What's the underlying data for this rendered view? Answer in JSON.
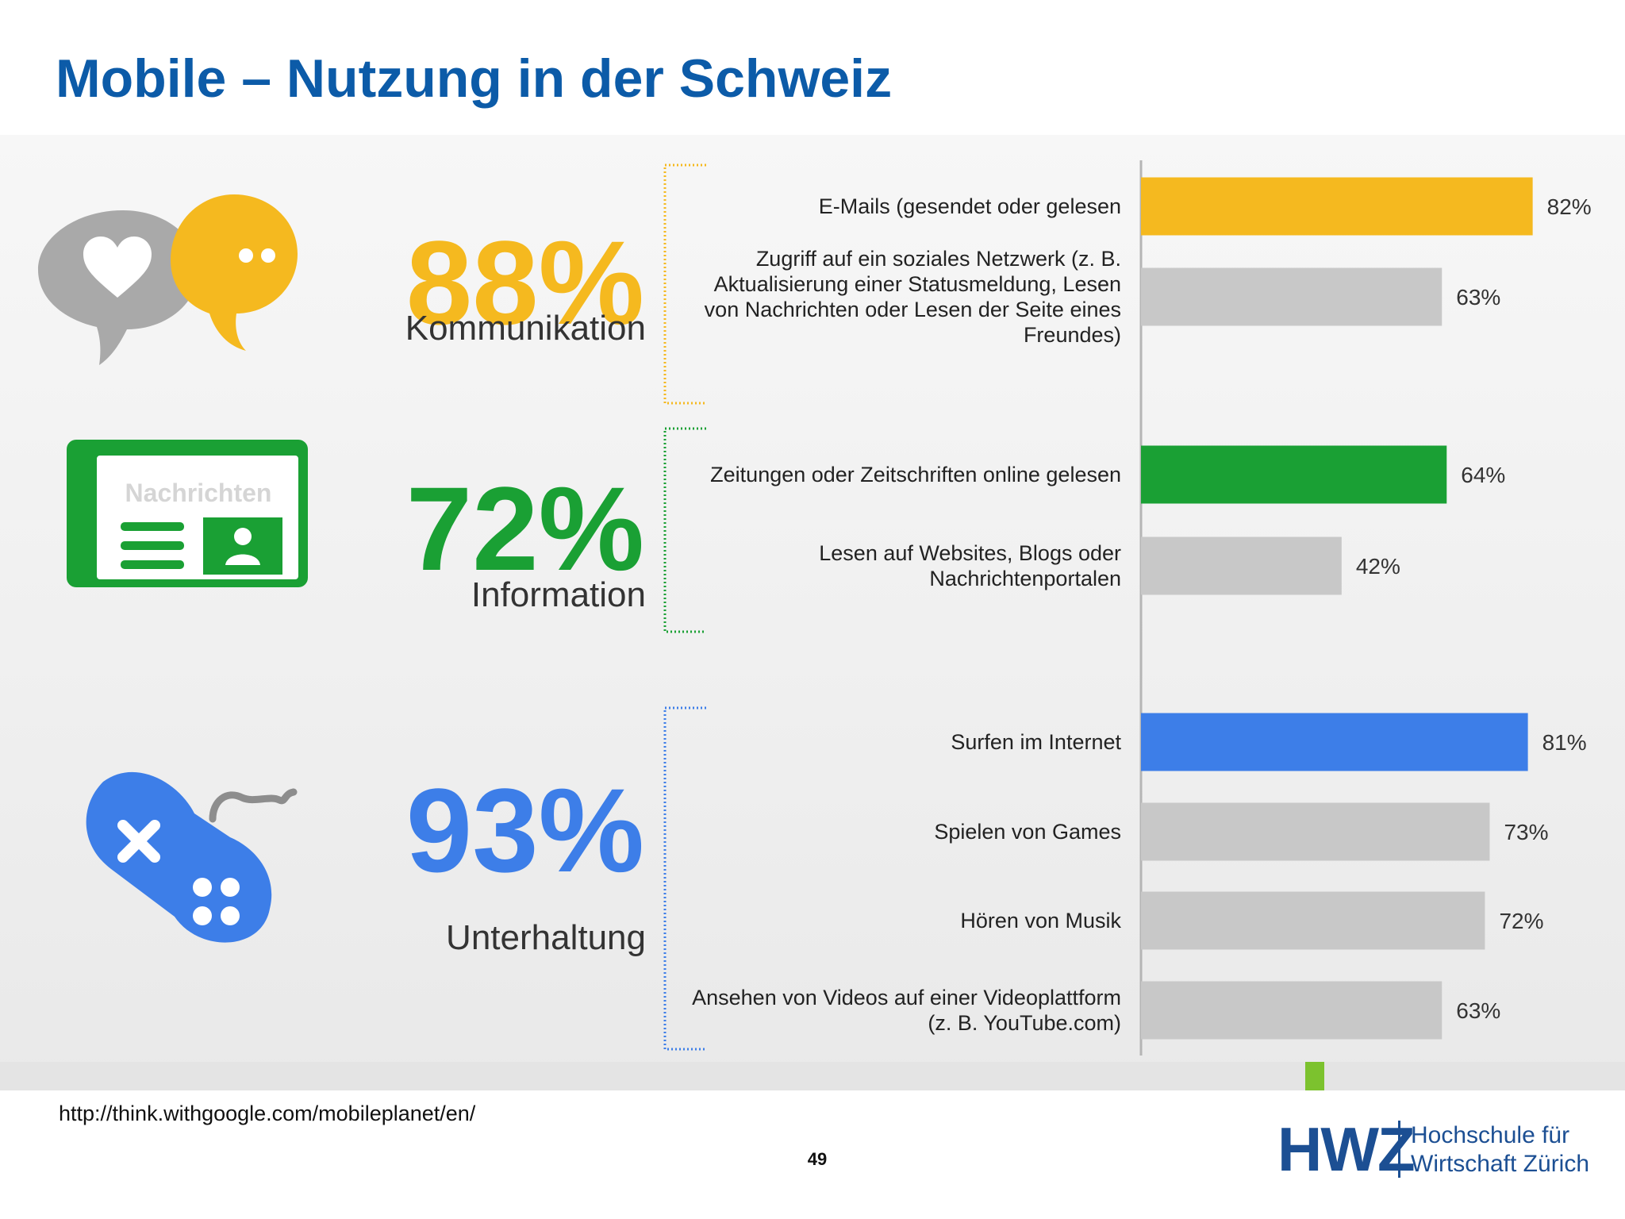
{
  "slide": {
    "title": "Mobile – Nutzung in der Schweiz",
    "source_url": "http://think.withgoogle.com/mobileplanet/en/",
    "page_number": "49"
  },
  "logo": {
    "mark": "HWZ",
    "line1": "Hochschule für",
    "line2": "Wirtschaft Zürich"
  },
  "colors": {
    "title": "#0c5ba8",
    "kommunikation": "#f5b91f",
    "information": "#1aa034",
    "unterhaltung": "#3d7ee8",
    "secondary_bar": "#c8c8c8"
  },
  "chart_data": {
    "type": "bar",
    "orientation": "horizontal",
    "value_unit": "%",
    "xlim": [
      0,
      100
    ],
    "groups": [
      {
        "name": "Kommunikation",
        "total": "88%",
        "color": "#f5b91f",
        "icon": "speech-bubbles-heart-icon",
        "bars": [
          {
            "label": "E-Mails (gesendet oder gelesen",
            "value": 82,
            "value_label": "82%",
            "highlight": true
          },
          {
            "label": "Zugriff auf ein soziales Netzwerk (z. B. Aktualisierung einer Statusmeldung, Lesen von Nachrichten oder Lesen der Seite eines Freundes)",
            "value": 63,
            "value_label": "63%",
            "highlight": false
          }
        ]
      },
      {
        "name": "Information",
        "total": "72%",
        "color": "#1aa034",
        "icon": "newspaper-icon",
        "icon_text": "Nachrichten",
        "bars": [
          {
            "label": "Zeitungen oder Zeitschriften online gelesen",
            "value": 64,
            "value_label": "64%",
            "highlight": true
          },
          {
            "label": "Lesen auf Websites, Blogs oder Nachrichtenportalen",
            "value": 42,
            "value_label": "42%",
            "highlight": false
          }
        ]
      },
      {
        "name": "Unterhaltung",
        "total": "93%",
        "color": "#3d7ee8",
        "icon": "gamepad-icon",
        "bars": [
          {
            "label": "Surfen im Internet",
            "value": 81,
            "value_label": "81%",
            "highlight": true
          },
          {
            "label": "Spielen von Games",
            "value": 73,
            "value_label": "73%",
            "highlight": false
          },
          {
            "label": "Hören von Musik",
            "value": 72,
            "value_label": "72%",
            "highlight": false
          },
          {
            "label": "Ansehen von Videos auf einer Videoplattform (z. B. YouTube.com)",
            "value": 63,
            "value_label": "63%",
            "highlight": false
          }
        ]
      }
    ]
  }
}
